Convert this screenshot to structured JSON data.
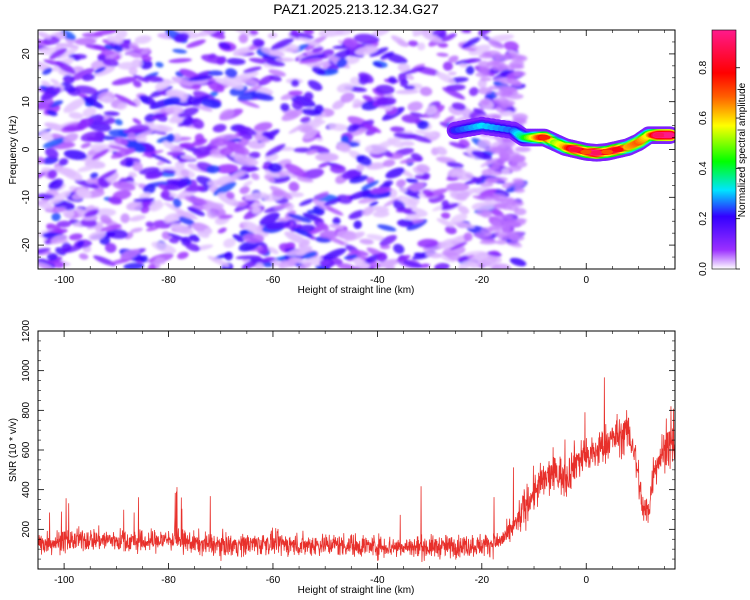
{
  "title": "PAZ1.2025.213.12.34.G27",
  "colors": {
    "snr_line": "#e8302b",
    "text": "#000000",
    "frame": "#000000",
    "background": "#ffffff",
    "colorbar_stops": [
      "#ffffff",
      "#9b30ff",
      "#3300ff",
      "#00e5ff",
      "#00ff00",
      "#ffff00",
      "#ff6000",
      "#ff0000",
      "#ff1a8c"
    ]
  },
  "chart_data": [
    {
      "type": "heatmap",
      "title": "PAZ1.2025.213.12.34.G27",
      "xlabel": "Height of straight line (km)",
      "ylabel": "Frequency (Hz)",
      "xlim": [
        -105,
        17
      ],
      "ylim": [
        -25,
        25
      ],
      "xticks": [
        -100,
        -80,
        -60,
        -40,
        -20,
        0
      ],
      "yticks": [
        -20,
        -10,
        0,
        10,
        20
      ],
      "colorbar": {
        "label": "Normalized spectral amplitude",
        "range": [
          0,
          0.95
        ],
        "ticks": [
          "0.0",
          "0.2",
          "0.4",
          "0.6",
          "0.8"
        ]
      },
      "noise_region": {
        "x": [
          -105,
          -13
        ],
        "amplitude_range": [
          0.02,
          0.25
        ]
      },
      "signal_ridge": [
        {
          "x": -25,
          "freq": 4.0,
          "amp": 0.18
        },
        {
          "x": -20,
          "freq": 5.0,
          "amp": 0.25
        },
        {
          "x": -14,
          "freq": 4.0,
          "amp": 0.2
        },
        {
          "x": -12,
          "freq": 2.5,
          "amp": 0.3
        },
        {
          "x": -10,
          "freq": 2.5,
          "amp": 0.45
        },
        {
          "x": -8,
          "freq": 2.5,
          "amp": 0.65
        },
        {
          "x": -6,
          "freq": 1.5,
          "amp": 0.4
        },
        {
          "x": -4,
          "freq": 0.5,
          "amp": 0.5
        },
        {
          "x": -2,
          "freq": 0.0,
          "amp": 0.75
        },
        {
          "x": 0,
          "freq": -0.5,
          "amp": 0.6
        },
        {
          "x": 2,
          "freq": -0.7,
          "amp": 0.8
        },
        {
          "x": 4,
          "freq": -0.5,
          "amp": 0.6
        },
        {
          "x": 6,
          "freq": 0.0,
          "amp": 0.7
        },
        {
          "x": 8,
          "freq": 0.5,
          "amp": 0.5
        },
        {
          "x": 10,
          "freq": 1.5,
          "amp": 0.55
        },
        {
          "x": 12,
          "freq": 3.0,
          "amp": 0.45
        },
        {
          "x": 14,
          "freq": 3.0,
          "amp": 0.8
        },
        {
          "x": 16,
          "freq": 3.0,
          "amp": 0.85
        }
      ]
    },
    {
      "type": "line",
      "xlabel": "Height of straight line (km)",
      "ylabel": "SNR (10 * v/v)",
      "xlim": [
        -105,
        17
      ],
      "ylim": [
        0,
        1200
      ],
      "xticks": [
        -100,
        -80,
        -60,
        -40,
        -20,
        0
      ],
      "yticks": [
        200,
        400,
        600,
        800,
        1000,
        1200
      ],
      "series": [
        {
          "x": [
            -105,
            -100,
            -95,
            -90,
            -85,
            -80,
            -75,
            -70,
            -65,
            -60,
            -55,
            -50,
            -45,
            -40,
            -35,
            -30,
            -25,
            -20,
            -17,
            -15,
            -13,
            -11,
            -9,
            -7,
            -5,
            -4,
            -2,
            0,
            2,
            4,
            6,
            8,
            9,
            10,
            11,
            12,
            13,
            14,
            15,
            16,
            17
          ],
          "y": [
            130,
            140,
            150,
            145,
            135,
            150,
            130,
            120,
            125,
            130,
            120,
            125,
            120,
            115,
            110,
            110,
            115,
            120,
            135,
            170,
            250,
            350,
            420,
            470,
            480,
            450,
            550,
            560,
            590,
            640,
            670,
            690,
            620,
            460,
            280,
            300,
            520,
            560,
            600,
            610,
            620
          ]
        }
      ]
    }
  ]
}
